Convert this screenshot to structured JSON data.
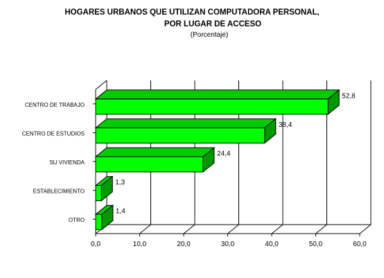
{
  "chart_data": {
    "type": "bar",
    "orientation": "horizontal",
    "title_line1": "HOGARES URBANOS QUE UTILIZAN COMPUTADORA PERSONAL,",
    "title_line2": "POR LUGAR DE ACCESO",
    "subtitle": "(Porcentaje)",
    "categories": [
      "CENTRO DE TRABAJO",
      "CENTRO DE ESTUDIOS",
      "SU VIVIENDA",
      "ESTABLECIMIENTO",
      "OTRO"
    ],
    "values": [
      52.8,
      38.4,
      24.4,
      1.3,
      1.4
    ],
    "value_labels": [
      "52,8",
      "38,4",
      "24,4",
      "1,3",
      "1,4"
    ],
    "xlim": [
      0,
      60
    ],
    "xticks": [
      "0,0",
      "10,0",
      "20,0",
      "30,0",
      "40,0",
      "50,0",
      "60,0"
    ],
    "grid": true,
    "colors": {
      "bar_front": "#00ff00",
      "bar_top": "#00cc00",
      "bar_side": "#009900",
      "grid": "#000000"
    }
  }
}
